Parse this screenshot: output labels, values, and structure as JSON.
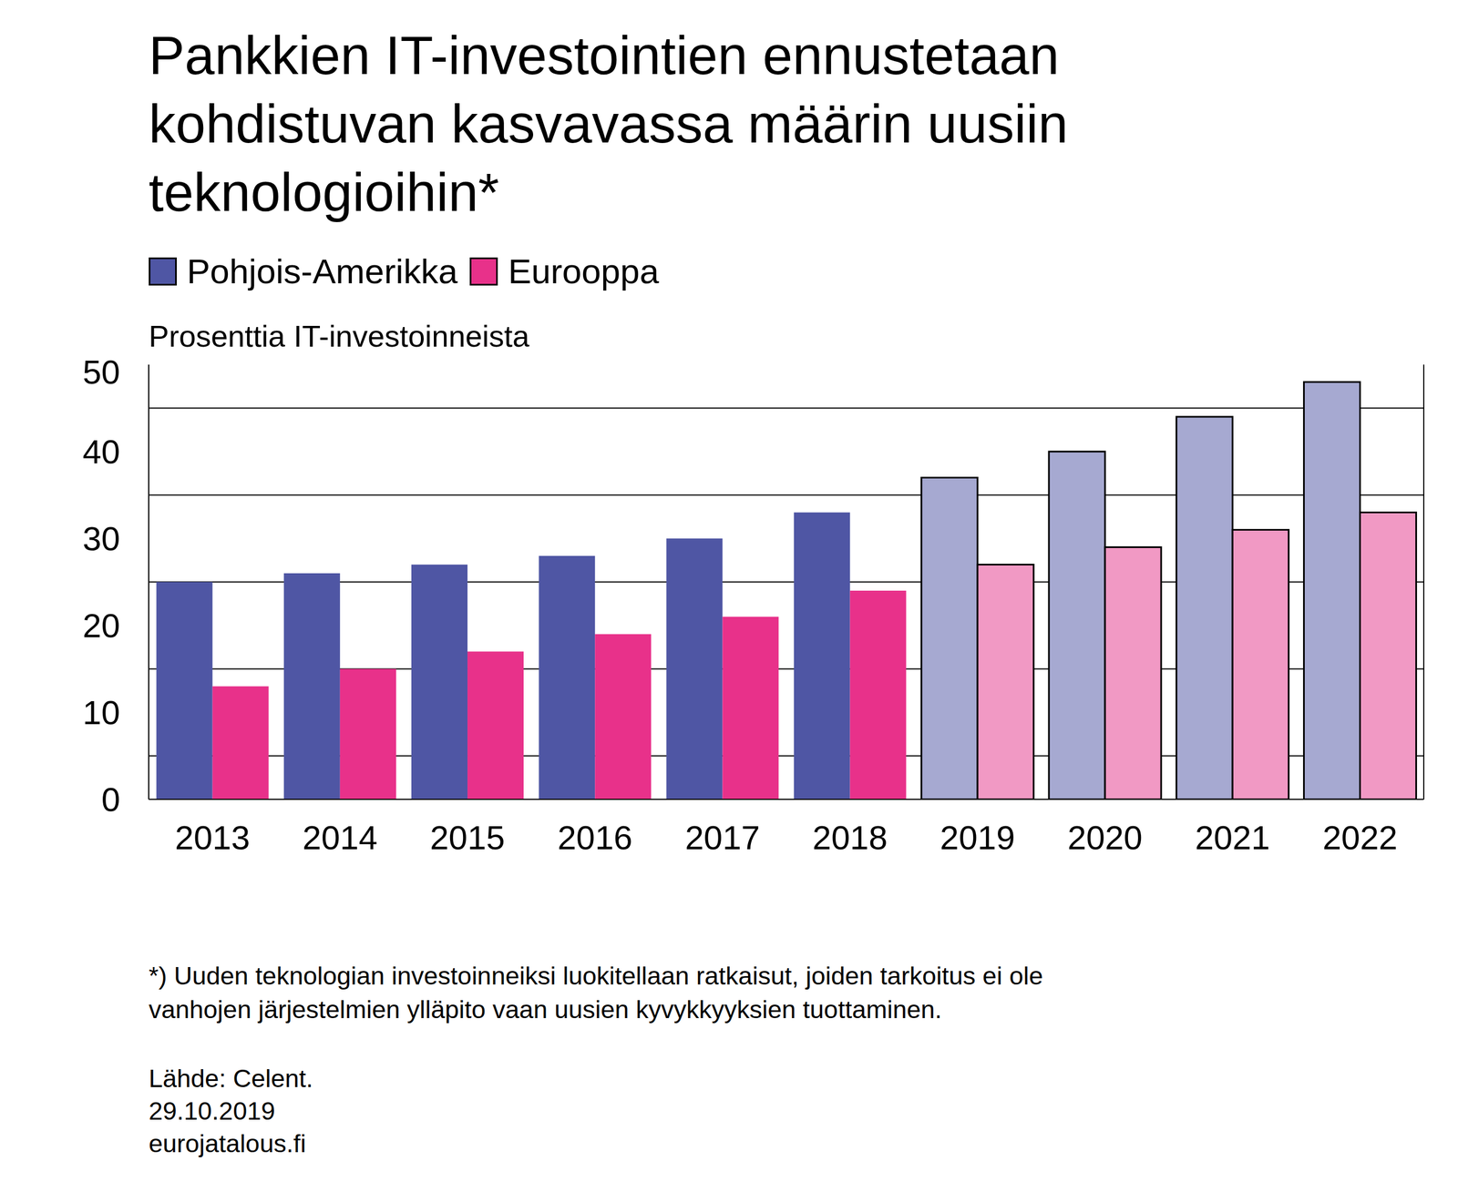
{
  "chart_data": {
    "type": "bar",
    "title": "Pankkien IT-investointien ennustetaan kohdistuvan kasvavassa määrin uusiin teknologioihin*",
    "y_label": "Prosenttia IT-investoinneista",
    "categories": [
      "2013",
      "2014",
      "2015",
      "2016",
      "2017",
      "2018",
      "2019",
      "2020",
      "2021",
      "2022"
    ],
    "series": [
      {
        "name": "Pohjois-Amerikka",
        "color": "#4f56a4",
        "colors": [
          "#4f56a4",
          "#4f56a4",
          "#4f56a4",
          "#4f56a4",
          "#4f56a4",
          "#4f56a4",
          "#a6a9d1",
          "#a6a9d1",
          "#a6a9d1",
          "#a6a9d1"
        ],
        "values": [
          25,
          26,
          27,
          28,
          30,
          33,
          37,
          40,
          44,
          48
        ]
      },
      {
        "name": "Eurooppa",
        "color": "#e8318a",
        "colors": [
          "#e8318a",
          "#e8318a",
          "#e8318a",
          "#e8318a",
          "#e8318a",
          "#e8318a",
          "#f199c4",
          "#f199c4",
          "#f199c4",
          "#f199c4"
        ],
        "values": [
          13,
          15,
          17,
          19,
          21,
          24,
          27,
          29,
          31,
          33
        ]
      }
    ],
    "ylim": [
      0,
      50
    ],
    "yticks": [
      0,
      10,
      20,
      30,
      40,
      50
    ],
    "grid": true,
    "legend": "top left",
    "footnote": "*) Uuden teknologian investoinneiksi luokitellaan ratkaisut, joiden tarkoitus ei ole vanhojen järjestelmien ylläpito vaan uusien kyvykkyyksien tuottaminen.",
    "source": "Lähde: Celent.",
    "date": "29.10.2019",
    "site": "eurojatalous.fi"
  }
}
